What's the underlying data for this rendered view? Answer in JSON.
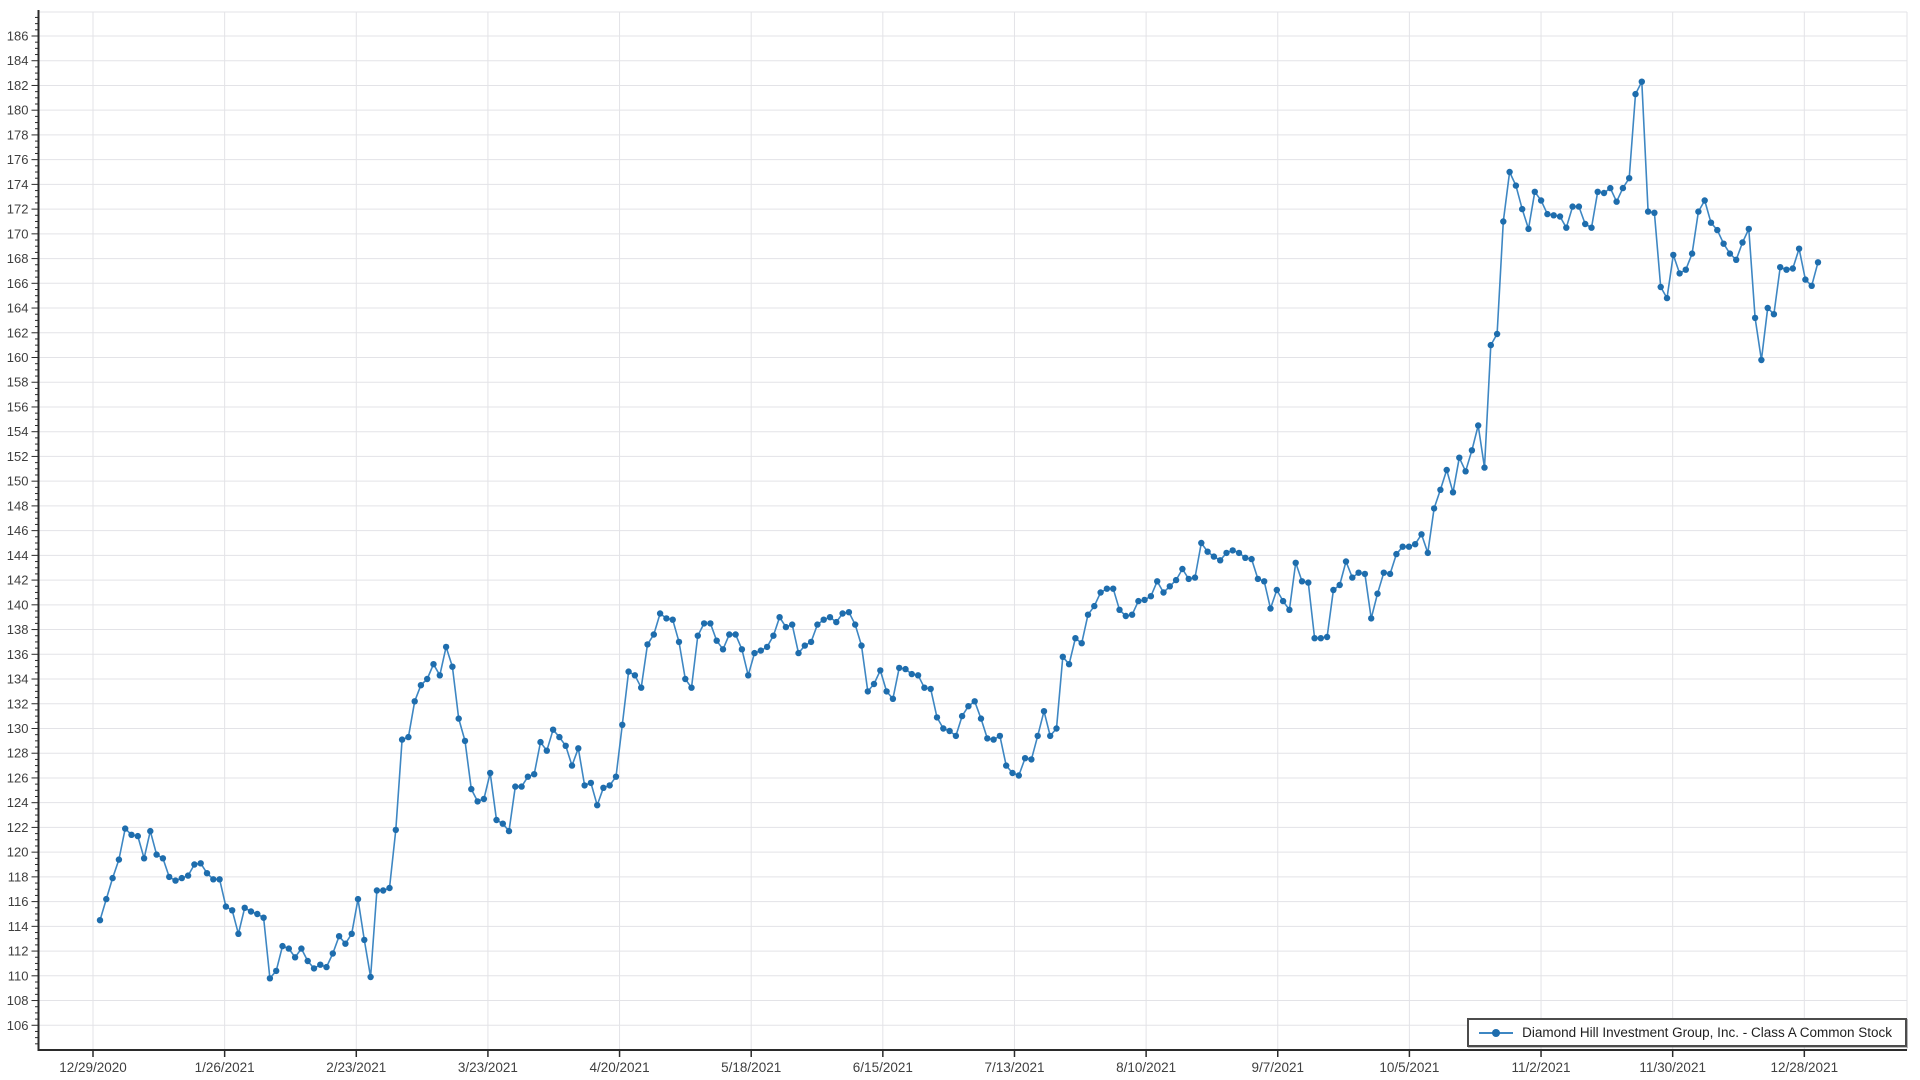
{
  "window": {
    "background": "#ffffff"
  },
  "legend": {
    "label": "Diamond Hill Investment Group, Inc. - Class A Common Stock"
  },
  "colors": {
    "line": "#3e87c3",
    "marker": "#1e6dad",
    "grid": "#e3e3e7",
    "axis": "#2b2b2b",
    "tick_label": "#3f3f3f",
    "legend_border": "#4c4c4c"
  },
  "chart_data": {
    "type": "line",
    "title": "",
    "xlabel": "",
    "ylabel": "",
    "grid": true,
    "legend_position": "bottom-right",
    "y_axis": {
      "label_min": 106,
      "label_max": 186,
      "label_step": 2,
      "minor_step": 0.5,
      "domain_min": 104.0,
      "domain_max": 187.94
    },
    "x_tick_labels": [
      "12/29/2020",
      "1/26/2021",
      "2/23/2021",
      "3/23/2021",
      "4/20/2021",
      "5/18/2021",
      "6/15/2021",
      "7/13/2021",
      "8/10/2021",
      "9/7/2021",
      "10/5/2021",
      "11/2/2021",
      "11/30/2021",
      "12/28/2021"
    ],
    "series": [
      {
        "name": "Diamond Hill Investment Group, Inc. - Class A Common Stock",
        "color_line": "#3e87c3",
        "color_marker": "#1e6dad",
        "values": [
          114.5,
          116.2,
          117.9,
          119.4,
          121.9,
          121.4,
          121.3,
          119.5,
          121.7,
          119.8,
          119.5,
          118.0,
          117.7,
          117.9,
          118.1,
          119.0,
          119.1,
          118.3,
          117.8,
          117.8,
          115.6,
          115.3,
          113.4,
          115.5,
          115.2,
          115.0,
          114.7,
          109.8,
          110.4,
          112.4,
          112.2,
          111.5,
          112.2,
          111.2,
          110.6,
          110.9,
          110.7,
          111.8,
          113.2,
          112.6,
          113.4,
          116.2,
          112.9,
          109.9,
          116.9,
          116.9,
          117.1,
          121.8,
          129.1,
          129.3,
          132.2,
          133.5,
          134.0,
          135.2,
          134.3,
          136.6,
          135.0,
          130.8,
          129.0,
          125.1,
          124.1,
          124.3,
          126.4,
          122.6,
          122.3,
          121.7,
          125.3,
          125.3,
          126.1,
          126.3,
          128.9,
          128.2,
          129.9,
          129.3,
          128.6,
          127.0,
          128.4,
          125.4,
          125.6,
          123.8,
          125.2,
          125.4,
          126.1,
          130.3,
          134.6,
          134.3,
          133.3,
          136.8,
          137.6,
          139.3,
          138.9,
          138.8,
          137.0,
          134.0,
          133.3,
          137.5,
          138.5,
          138.5,
          137.1,
          136.4,
          137.6,
          137.6,
          136.4,
          134.3,
          136.1,
          136.3,
          136.6,
          137.5,
          139.0,
          138.2,
          138.4,
          136.1,
          136.7,
          137.0,
          138.4,
          138.8,
          139.0,
          138.6,
          139.3,
          139.4,
          138.4,
          136.7,
          133.0,
          133.6,
          134.7,
          133.0,
          132.4,
          134.9,
          134.8,
          134.4,
          134.3,
          133.3,
          133.2,
          130.9,
          130.0,
          129.8,
          129.4,
          131.0,
          131.8,
          132.2,
          130.8,
          129.2,
          129.1,
          129.4,
          127.0,
          126.4,
          126.2,
          127.6,
          127.5,
          129.4,
          131.4,
          129.4,
          130.0,
          135.8,
          135.2,
          137.3,
          136.9,
          139.2,
          139.9,
          141.0,
          141.3,
          141.3,
          139.6,
          139.1,
          139.2,
          140.3,
          140.4,
          140.7,
          141.9,
          141.0,
          141.5,
          142.0,
          142.9,
          142.1,
          142.2,
          145.0,
          144.3,
          143.9,
          143.6,
          144.2,
          144.4,
          144.2,
          143.8,
          143.7,
          142.1,
          141.9,
          139.7,
          141.2,
          140.3,
          139.6,
          143.4,
          141.9,
          141.8,
          137.3,
          137.3,
          137.4,
          141.2,
          141.6,
          143.5,
          142.2,
          142.6,
          142.5,
          138.9,
          140.9,
          142.6,
          142.5,
          144.1,
          144.7,
          144.7,
          144.9,
          145.7,
          144.2,
          147.8,
          149.3,
          150.9,
          149.1,
          151.9,
          150.8,
          152.5,
          154.5,
          151.1,
          161.0,
          161.9,
          171.0,
          175.0,
          173.9,
          172.0,
          170.4,
          173.4,
          172.7,
          171.6,
          171.5,
          171.4,
          170.5,
          172.2,
          172.2,
          170.8,
          170.5,
          173.4,
          173.3,
          173.7,
          172.6,
          173.7,
          174.5,
          181.3,
          182.3,
          171.8,
          171.7,
          165.7,
          164.8,
          168.3,
          166.8,
          167.1,
          168.4,
          171.8,
          172.7,
          170.9,
          170.3,
          169.2,
          168.4,
          167.9,
          169.3,
          170.4,
          163.2,
          159.8,
          164.0,
          163.5,
          167.3,
          167.1,
          167.2,
          168.8,
          166.3,
          165.8,
          167.7
        ]
      }
    ]
  }
}
